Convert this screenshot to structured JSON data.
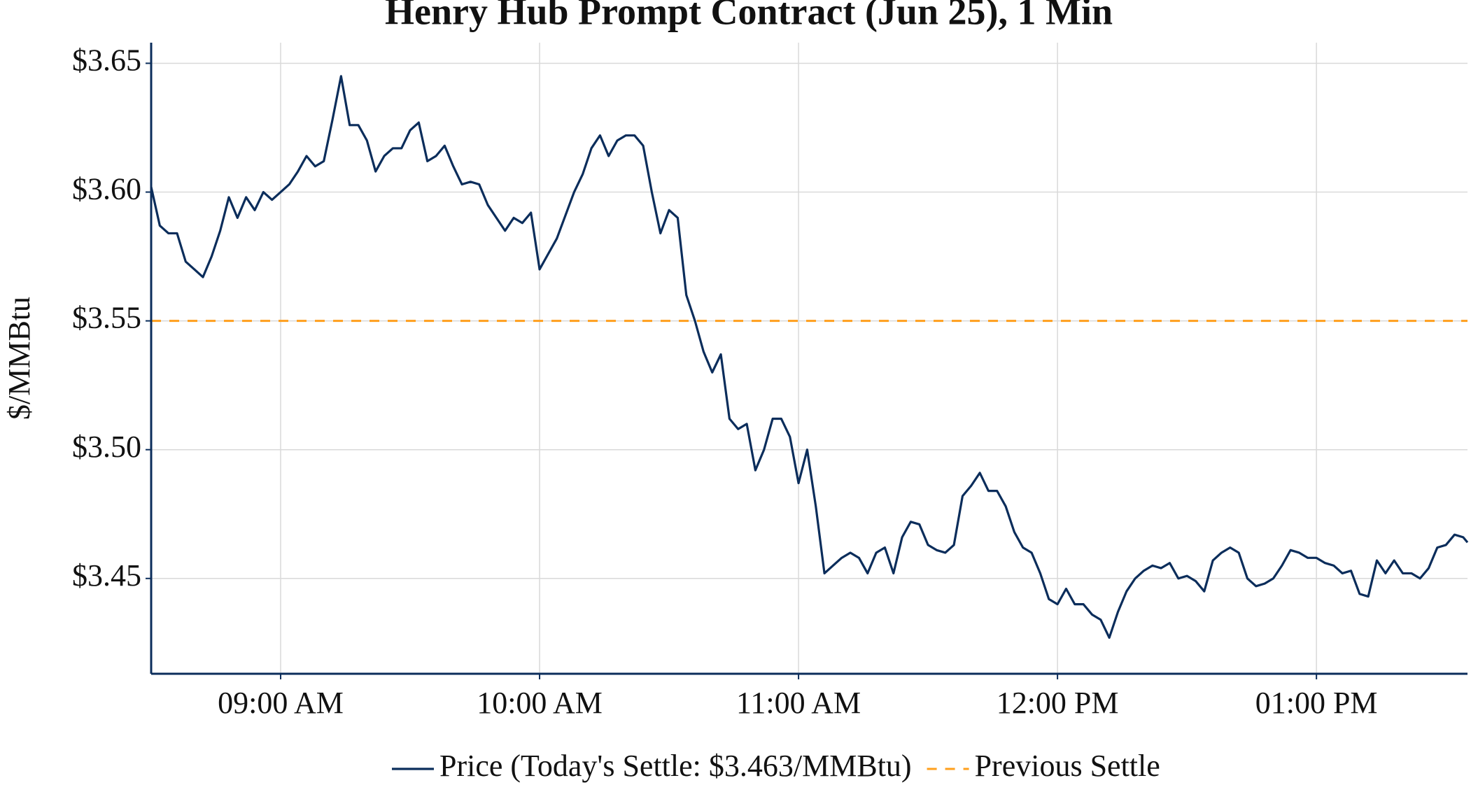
{
  "chart_data": {
    "type": "line",
    "title": "Henry Hub Prompt Contract (Jun 25), 1 Min",
    "y_label": "$/MMBtu",
    "x": [
      "08:30",
      "08:32",
      "08:34",
      "08:36",
      "08:38",
      "08:40",
      "08:42",
      "08:44",
      "08:46",
      "08:48",
      "08:50",
      "08:52",
      "08:54",
      "08:56",
      "08:58",
      "09:00",
      "09:02",
      "09:04",
      "09:06",
      "09:08",
      "09:10",
      "09:12",
      "09:14",
      "09:16",
      "09:18",
      "09:20",
      "09:22",
      "09:24",
      "09:26",
      "09:28",
      "09:30",
      "09:32",
      "09:34",
      "09:36",
      "09:38",
      "09:40",
      "09:42",
      "09:44",
      "09:46",
      "09:48",
      "09:50",
      "09:52",
      "09:54",
      "09:56",
      "09:58",
      "10:00",
      "10:02",
      "10:04",
      "10:06",
      "10:08",
      "10:10",
      "10:12",
      "10:14",
      "10:16",
      "10:18",
      "10:20",
      "10:22",
      "10:24",
      "10:26",
      "10:28",
      "10:30",
      "10:32",
      "10:34",
      "10:36",
      "10:38",
      "10:40",
      "10:42",
      "10:44",
      "10:46",
      "10:48",
      "10:50",
      "10:52",
      "10:54",
      "10:56",
      "10:58",
      "11:00",
      "11:02",
      "11:04",
      "11:06",
      "11:08",
      "11:10",
      "11:12",
      "11:14",
      "11:16",
      "11:18",
      "11:20",
      "11:22",
      "11:24",
      "11:26",
      "11:28",
      "11:30",
      "11:32",
      "11:34",
      "11:36",
      "11:38",
      "11:40",
      "11:42",
      "11:44",
      "11:46",
      "11:48",
      "11:50",
      "11:52",
      "11:54",
      "11:56",
      "11:58",
      "12:00",
      "12:02",
      "12:04",
      "12:06",
      "12:08",
      "12:10",
      "12:12",
      "12:14",
      "12:16",
      "12:18",
      "12:20",
      "12:22",
      "12:24",
      "12:26",
      "12:28",
      "12:30",
      "12:32",
      "12:34",
      "12:36",
      "12:38",
      "12:40",
      "12:42",
      "12:44",
      "12:46",
      "12:48",
      "12:50",
      "12:52",
      "12:54",
      "12:56",
      "12:58",
      "13:00",
      "13:02",
      "13:04",
      "13:06",
      "13:08",
      "13:10",
      "13:12",
      "13:14",
      "13:16",
      "13:18",
      "13:20",
      "13:22",
      "13:24",
      "13:26",
      "13:28",
      "13:30",
      "13:32",
      "13:34",
      "13:35"
    ],
    "series": [
      {
        "name": "Price (Today's Settle: $3.463/MMBtu)",
        "color": "#0b2d5b",
        "values": [
          3.602,
          3.587,
          3.584,
          3.584,
          3.573,
          3.57,
          3.567,
          3.575,
          3.585,
          3.598,
          3.59,
          3.598,
          3.593,
          3.6,
          3.597,
          3.6,
          3.603,
          3.608,
          3.614,
          3.61,
          3.612,
          3.628,
          3.645,
          3.626,
          3.626,
          3.62,
          3.608,
          3.614,
          3.617,
          3.617,
          3.624,
          3.627,
          3.612,
          3.614,
          3.618,
          3.61,
          3.603,
          3.604,
          3.603,
          3.595,
          3.59,
          3.585,
          3.59,
          3.588,
          3.592,
          3.57,
          3.576,
          3.582,
          3.591,
          3.6,
          3.607,
          3.617,
          3.622,
          3.614,
          3.62,
          3.622,
          3.622,
          3.618,
          3.6,
          3.584,
          3.593,
          3.59,
          3.56,
          3.55,
          3.538,
          3.53,
          3.537,
          3.512,
          3.508,
          3.51,
          3.492,
          3.5,
          3.512,
          3.512,
          3.505,
          3.487,
          3.5,
          3.478,
          3.452,
          3.455,
          3.458,
          3.46,
          3.458,
          3.452,
          3.46,
          3.462,
          3.452,
          3.466,
          3.472,
          3.471,
          3.463,
          3.461,
          3.46,
          3.463,
          3.482,
          3.486,
          3.491,
          3.484,
          3.484,
          3.478,
          3.468,
          3.462,
          3.46,
          3.452,
          3.442,
          3.44,
          3.446,
          3.44,
          3.44,
          3.436,
          3.434,
          3.427,
          3.437,
          3.445,
          3.45,
          3.453,
          3.455,
          3.454,
          3.456,
          3.45,
          3.451,
          3.449,
          3.445,
          3.457,
          3.46,
          3.462,
          3.46,
          3.45,
          3.447,
          3.448,
          3.45,
          3.455,
          3.461,
          3.46,
          3.458,
          3.458,
          3.456,
          3.455,
          3.452,
          3.453,
          3.444,
          3.443,
          3.457,
          3.452,
          3.457,
          3.452,
          3.452,
          3.45,
          3.454,
          3.462,
          3.463,
          3.467,
          3.466,
          3.464
        ]
      }
    ],
    "reference_line": {
      "name": "Previous Settle",
      "value": 3.55,
      "color": "#ff9f1c",
      "dashed": true
    },
    "xlim": [
      "08:30",
      "13:35"
    ],
    "xticks": [
      {
        "value": "09:00",
        "label": "09:00 AM"
      },
      {
        "value": "10:00",
        "label": "10:00 AM"
      },
      {
        "value": "11:00",
        "label": "11:00 AM"
      },
      {
        "value": "12:00",
        "label": "12:00 PM"
      },
      {
        "value": "13:00",
        "label": "01:00 PM"
      }
    ],
    "ylim": [
      3.413,
      3.658
    ],
    "yticks": [
      {
        "value": 3.45,
        "label": "$3.45"
      },
      {
        "value": 3.5,
        "label": "$3.50"
      },
      {
        "value": 3.55,
        "label": "$3.55"
      },
      {
        "value": 3.6,
        "label": "$3.60"
      },
      {
        "value": 3.65,
        "label": "$3.65"
      }
    ],
    "grid": true
  }
}
